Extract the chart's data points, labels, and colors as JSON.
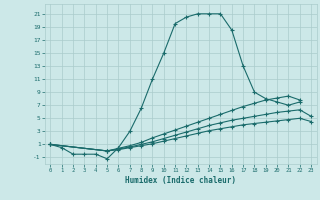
{
  "title": "",
  "xlabel": "Humidex (Indice chaleur)",
  "bg_color": "#cce8e8",
  "line_color": "#1a6b6b",
  "grid_color": "#aacccc",
  "xlim": [
    -0.5,
    23.5
  ],
  "ylim": [
    -2,
    22.5
  ],
  "xticks": [
    0,
    1,
    2,
    3,
    4,
    5,
    6,
    7,
    8,
    9,
    10,
    11,
    12,
    13,
    14,
    15,
    16,
    17,
    18,
    19,
    20,
    21,
    22,
    23
  ],
  "yticks": [
    -1,
    1,
    3,
    5,
    7,
    9,
    11,
    13,
    15,
    17,
    19,
    21
  ],
  "line1_x": [
    0,
    1,
    2,
    3,
    4,
    5,
    6,
    7,
    8,
    9,
    10,
    11,
    12,
    13,
    14,
    15,
    16,
    17,
    18,
    19,
    20,
    21,
    22
  ],
  "line1_y": [
    1,
    0.5,
    -0.5,
    -0.5,
    -0.5,
    -1.2,
    0.5,
    3,
    6.5,
    11,
    15,
    19.5,
    20.5,
    21,
    21,
    21,
    18.5,
    13,
    9,
    8,
    7.5,
    7,
    7.5
  ],
  "line2_x": [
    0,
    5,
    6,
    7,
    8,
    9,
    10,
    11,
    12,
    13,
    14,
    15,
    16,
    17,
    18,
    19,
    20,
    21,
    22
  ],
  "line2_y": [
    1,
    0,
    0.4,
    0.8,
    1.3,
    2.0,
    2.6,
    3.2,
    3.8,
    4.4,
    5.0,
    5.6,
    6.2,
    6.8,
    7.3,
    7.8,
    8.1,
    8.4,
    7.8
  ],
  "line3_x": [
    0,
    5,
    6,
    7,
    8,
    9,
    10,
    11,
    12,
    13,
    14,
    15,
    16,
    17,
    18,
    19,
    20,
    21,
    22,
    23
  ],
  "line3_y": [
    1,
    0,
    0.3,
    0.6,
    1.0,
    1.4,
    1.9,
    2.4,
    2.9,
    3.4,
    3.9,
    4.3,
    4.7,
    5.0,
    5.3,
    5.6,
    5.9,
    6.1,
    6.3,
    5.3
  ],
  "line4_x": [
    0,
    5,
    6,
    7,
    8,
    9,
    10,
    11,
    12,
    13,
    14,
    15,
    16,
    17,
    18,
    19,
    20,
    21,
    22,
    23
  ],
  "line4_y": [
    1,
    0,
    0.2,
    0.5,
    0.8,
    1.1,
    1.5,
    1.9,
    2.3,
    2.7,
    3.1,
    3.4,
    3.7,
    4.0,
    4.2,
    4.4,
    4.6,
    4.8,
    5.0,
    4.5
  ]
}
